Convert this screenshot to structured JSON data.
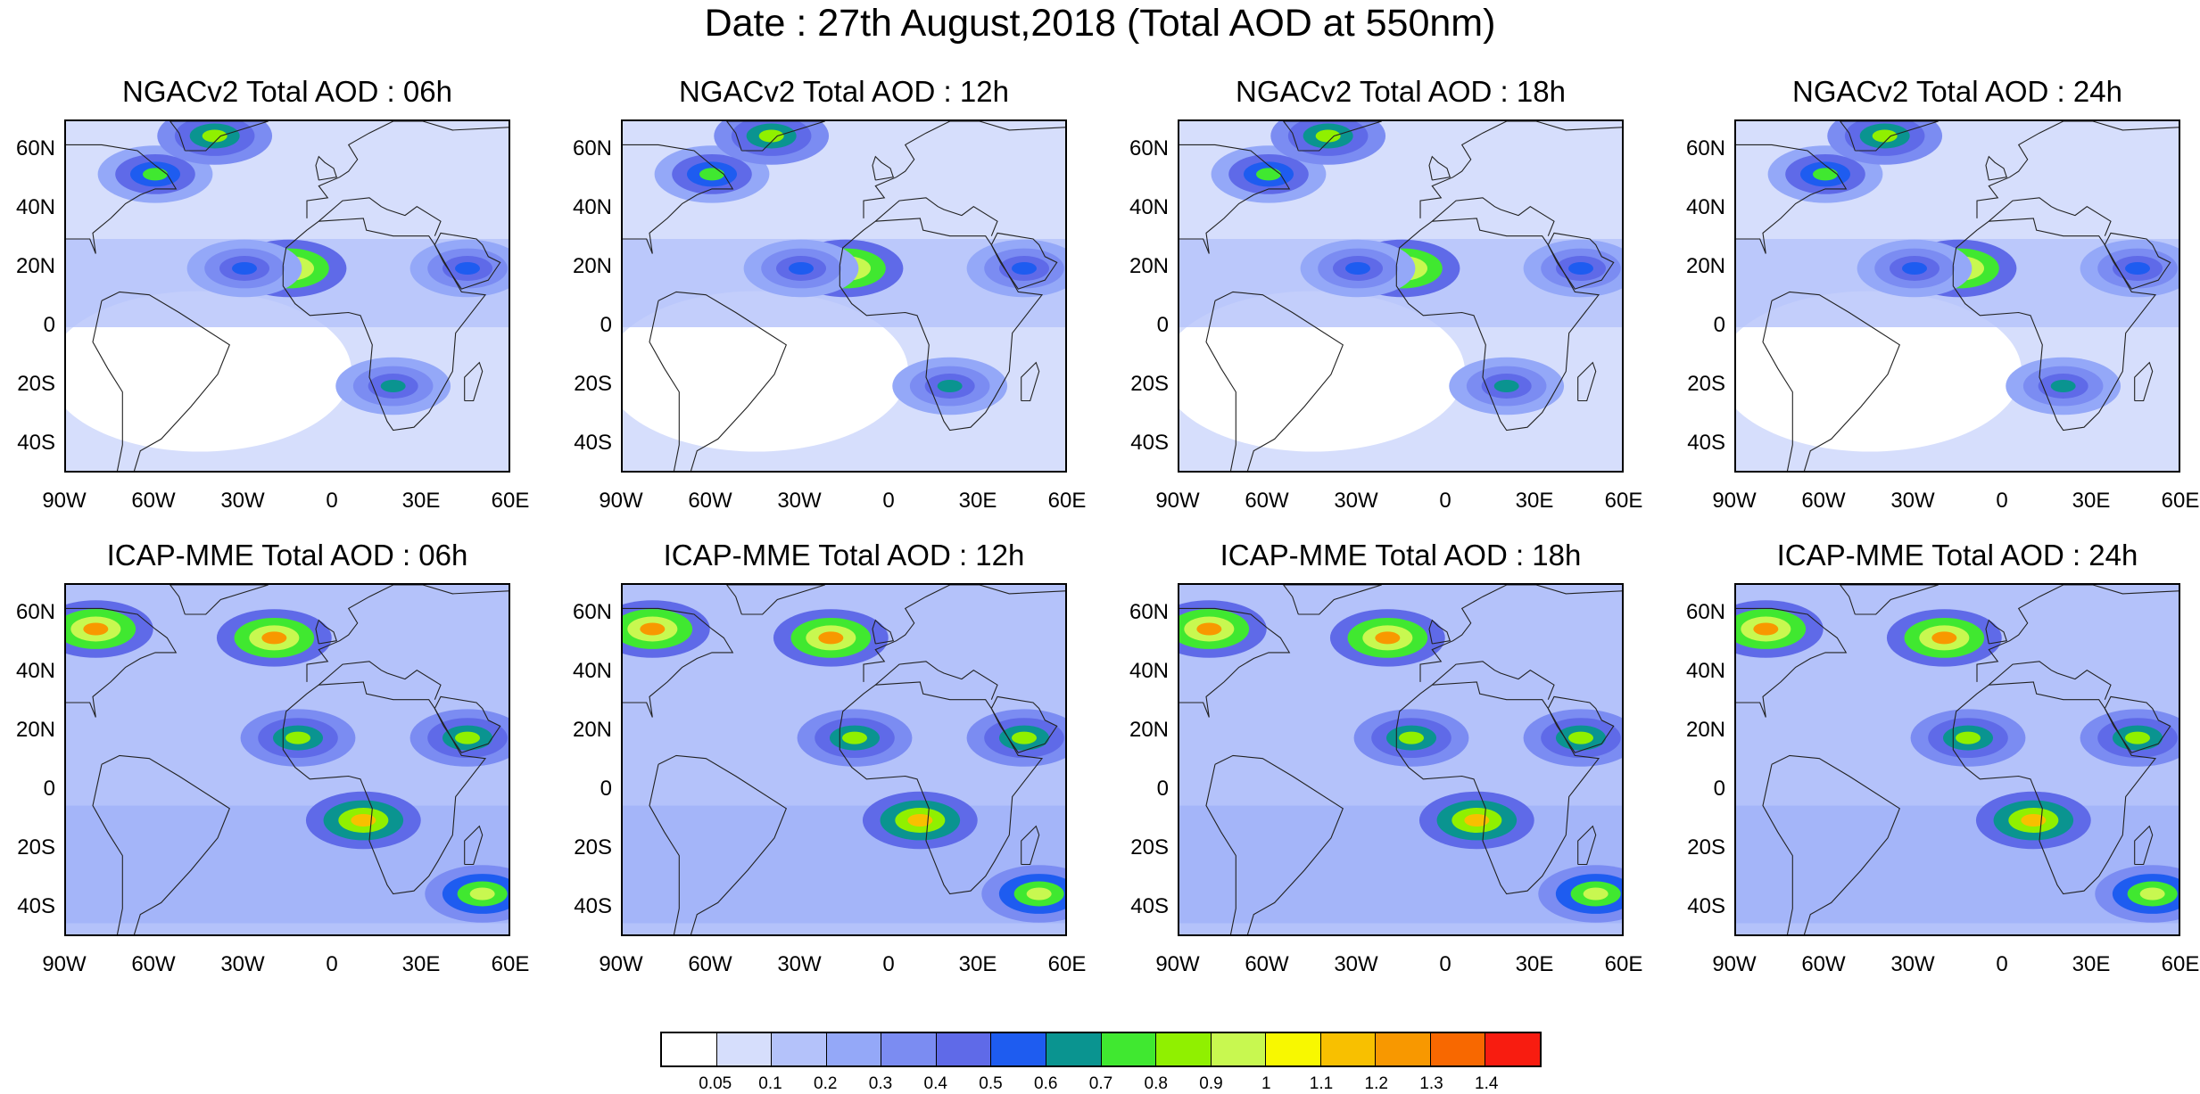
{
  "figure": {
    "title": "Date : 27th August,2018 (Total AOD at 550nm)"
  },
  "panels": [
    {
      "title": "NGACv2 Total AOD : 06h",
      "model": "NGACv2",
      "hour": "06h"
    },
    {
      "title": "NGACv2 Total AOD : 12h",
      "model": "NGACv2",
      "hour": "12h"
    },
    {
      "title": "NGACv2 Total AOD : 18h",
      "model": "NGACv2",
      "hour": "18h"
    },
    {
      "title": "NGACv2 Total AOD : 24h",
      "model": "NGACv2",
      "hour": "24h"
    },
    {
      "title": "ICAP-MME Total AOD : 06h",
      "model": "ICAP-MME",
      "hour": "06h"
    },
    {
      "title": "ICAP-MME Total AOD : 12h",
      "model": "ICAP-MME",
      "hour": "12h"
    },
    {
      "title": "ICAP-MME Total AOD : 18h",
      "model": "ICAP-MME",
      "hour": "18h"
    },
    {
      "title": "ICAP-MME Total AOD : 24h",
      "model": "ICAP-MME",
      "hour": "24h"
    }
  ],
  "axes": {
    "lat_labels": [
      "60N",
      "40N",
      "20N",
      "0",
      "20S",
      "40S"
    ],
    "lon_labels": [
      "90W",
      "60W",
      "30W",
      "0",
      "30E",
      "60E"
    ],
    "lat_range": [
      -50,
      70
    ],
    "lon_range": [
      -90,
      60
    ]
  },
  "colorbar": {
    "labels": [
      "0.05",
      "0.1",
      "0.2",
      "0.3",
      "0.4",
      "0.5",
      "0.6",
      "0.7",
      "0.8",
      "0.9",
      "1",
      "1.1",
      "1.2",
      "1.3",
      "1.4"
    ],
    "colors": [
      "#ffffff",
      "#d6defc",
      "#b4c2fa",
      "#94a8f8",
      "#7b8cf2",
      "#5f6ae8",
      "#1e5cf0",
      "#0a9490",
      "#40e830",
      "#90f000",
      "#c8f850",
      "#f8f800",
      "#f8c000",
      "#f89800",
      "#f86800",
      "#f81c10"
    ]
  },
  "aod_features": {
    "ngac": [
      {
        "name": "saharan-dust-core",
        "lon": -15,
        "lat": 20,
        "level": 1.2
      },
      {
        "name": "saharan-dust-swirl",
        "lon": -30,
        "lat": 20,
        "level": 0.5
      },
      {
        "name": "arabia-dust",
        "lon": 45,
        "lat": 20,
        "level": 0.5
      },
      {
        "name": "north-atlantic-band",
        "lon": -60,
        "lat": 52,
        "level": 0.7
      },
      {
        "name": "arctic-patch",
        "lon": -40,
        "lat": 65,
        "level": 0.8
      },
      {
        "name": "southern-africa",
        "lon": 20,
        "lat": -20,
        "level": 0.6
      }
    ],
    "icap": [
      {
        "name": "smoke-plume-west",
        "lon": -80,
        "lat": 55,
        "level": 1.2
      },
      {
        "name": "smoke-plume-east",
        "lon": -20,
        "lat": 52,
        "level": 1.2
      },
      {
        "name": "central-africa-smoke",
        "lon": 10,
        "lat": -10,
        "level": 1.1
      },
      {
        "name": "red-sea-band",
        "lon": -12,
        "lat": 18,
        "level": 0.8
      },
      {
        "name": "arabia-patch",
        "lon": 45,
        "lat": 18,
        "level": 0.8
      },
      {
        "name": "se-indian-streak",
        "lon": 50,
        "lat": -35,
        "level": 0.9
      }
    ]
  }
}
